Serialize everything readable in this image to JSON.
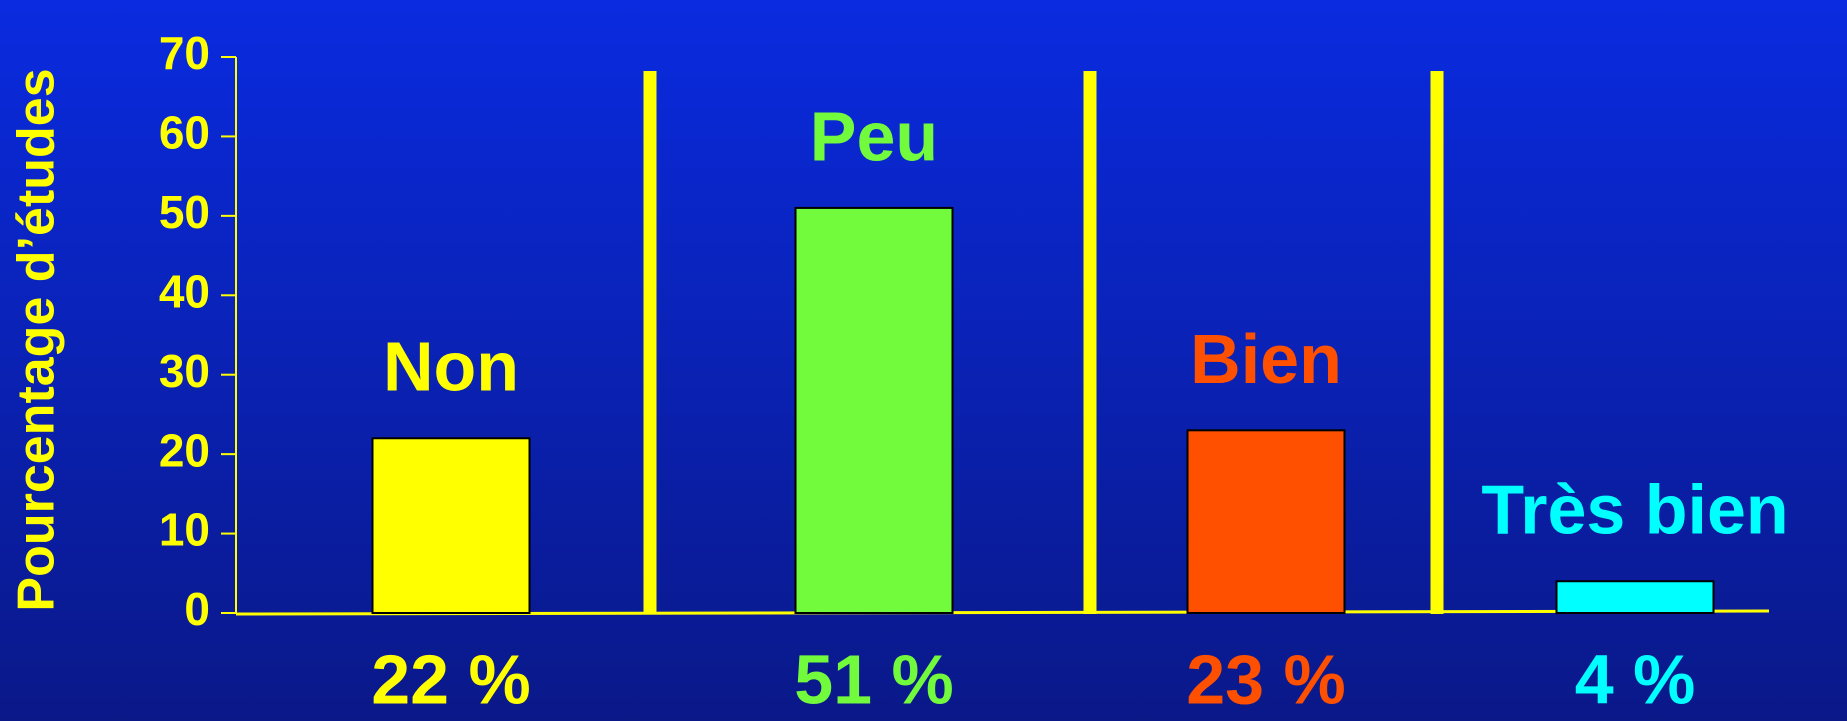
{
  "chart_data": {
    "type": "bar",
    "y_label": "Pourcentage d’études",
    "categories": [
      "Non",
      "Peu",
      "Bien",
      "Très bien"
    ],
    "values": [
      22,
      51,
      23,
      4
    ],
    "value_labels": [
      "22 %",
      "51 %",
      "23 %",
      "4 %"
    ],
    "colors": [
      "#ffff00",
      "#72fa3c",
      "#ff5000",
      "#00ffff"
    ],
    "ylim": [
      0,
      70
    ],
    "yticks": [
      0,
      10,
      20,
      30,
      40,
      50,
      60,
      70
    ]
  }
}
